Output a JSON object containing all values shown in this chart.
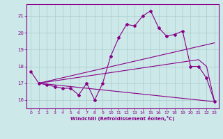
{
  "xlabel": "Windchill (Refroidissement éolien,°C)",
  "xlim": [
    -0.5,
    23.5
  ],
  "ylim": [
    15.5,
    21.7
  ],
  "xticks": [
    0,
    1,
    2,
    3,
    4,
    5,
    6,
    7,
    8,
    9,
    10,
    11,
    12,
    13,
    14,
    15,
    16,
    17,
    18,
    19,
    20,
    21,
    22,
    23
  ],
  "yticks": [
    16,
    17,
    18,
    19,
    20,
    21
  ],
  "bg_color": "#cce8e8",
  "line_color": "#880088",
  "grid_color": "#aacccc",
  "lines": [
    {
      "x": [
        0,
        1,
        2,
        3,
        4,
        5,
        6,
        7,
        8,
        9,
        10,
        11,
        12,
        13,
        14,
        15,
        16,
        17,
        18,
        19,
        20,
        21,
        22,
        23
      ],
      "y": [
        17.7,
        17.0,
        16.9,
        16.8,
        16.7,
        16.7,
        16.3,
        17.0,
        16.0,
        17.0,
        18.6,
        19.7,
        20.5,
        20.4,
        21.0,
        21.3,
        20.3,
        19.8,
        19.9,
        20.1,
        18.0,
        18.0,
        17.3,
        15.9
      ],
      "marker": true
    },
    {
      "x": [
        1,
        23
      ],
      "y": [
        17.0,
        19.4
      ],
      "marker": false
    },
    {
      "x": [
        1,
        23
      ],
      "y": [
        17.0,
        15.9
      ],
      "marker": false
    },
    {
      "x": [
        1,
        21,
        22,
        23
      ],
      "y": [
        17.0,
        18.4,
        18.0,
        15.9
      ],
      "marker": false
    }
  ]
}
